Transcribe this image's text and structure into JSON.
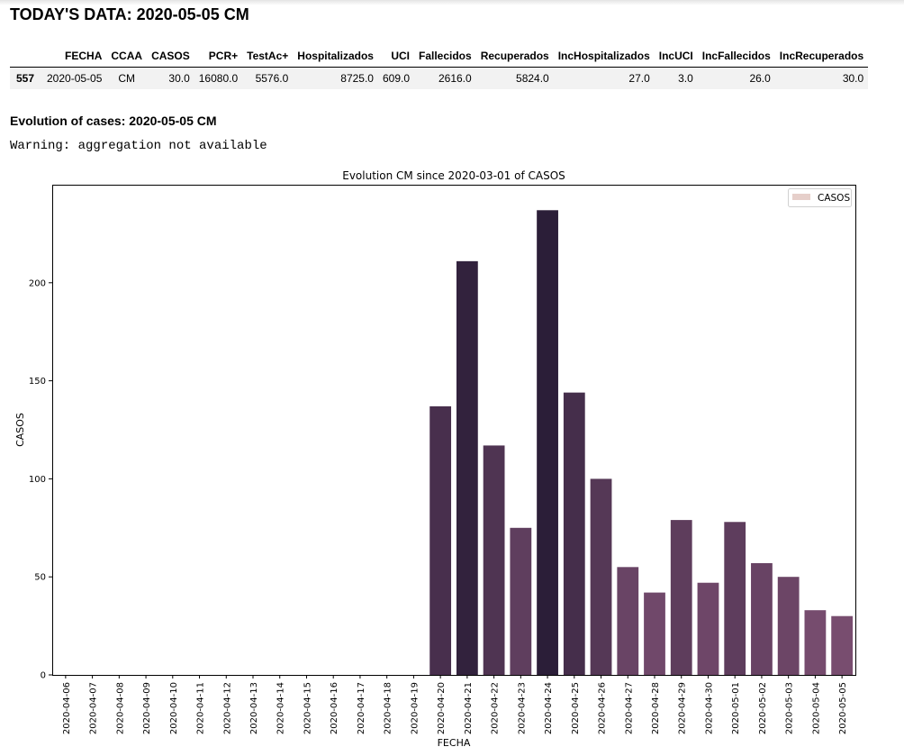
{
  "page_title": "TODAY'S DATA: 2020-05-05 CM",
  "table": {
    "headers": [
      "",
      "FECHA",
      "CCAA",
      "CASOS",
      "PCR+",
      "TestAc+",
      "Hospitalizados",
      "UCI",
      "Fallecidos",
      "Recuperados",
      "IncHospitalizados",
      "IncUCI",
      "IncFallecidos",
      "IncRecuperados"
    ],
    "row": [
      "557",
      "2020-05-05",
      "CM",
      "30.0",
      "16080.0",
      "5576.0",
      "8725.0",
      "609.0",
      "2616.0",
      "5824.0",
      "27.0",
      "3.0",
      "26.0",
      "30.0"
    ]
  },
  "section_heading": "Evolution of cases: 2020-05-05 CM",
  "warning": "Warning: aggregation not available",
  "chart_data": {
    "type": "bar",
    "title": "Evolution CM since 2020-03-01 of CASOS",
    "xlabel": "FECHA",
    "ylabel": "CASOS",
    "ylim": [
      0,
      250
    ],
    "yticks": [
      0,
      50,
      100,
      150,
      200
    ],
    "legend": {
      "label": "CASOS",
      "position": "top-right",
      "swatch_color": "#e6cfca"
    },
    "categories": [
      "2020-04-06",
      "2020-04-07",
      "2020-04-08",
      "2020-04-09",
      "2020-04-10",
      "2020-04-11",
      "2020-04-12",
      "2020-04-13",
      "2020-04-14",
      "2020-04-15",
      "2020-04-16",
      "2020-04-17",
      "2020-04-18",
      "2020-04-19",
      "2020-04-20",
      "2020-04-21",
      "2020-04-22",
      "2020-04-23",
      "2020-04-24",
      "2020-04-25",
      "2020-04-26",
      "2020-04-27",
      "2020-04-28",
      "2020-04-29",
      "2020-04-30",
      "2020-05-01",
      "2020-05-02",
      "2020-05-03",
      "2020-05-04",
      "2020-05-05"
    ],
    "values": [
      0,
      0,
      0,
      0,
      0,
      0,
      0,
      0,
      0,
      0,
      0,
      0,
      0,
      0,
      137,
      211,
      117,
      75,
      237,
      144,
      100,
      55,
      42,
      79,
      47,
      78,
      57,
      50,
      33,
      30
    ],
    "palette": {
      "low": "#a3678e",
      "high": "#2b1e38"
    },
    "grid": false
  }
}
